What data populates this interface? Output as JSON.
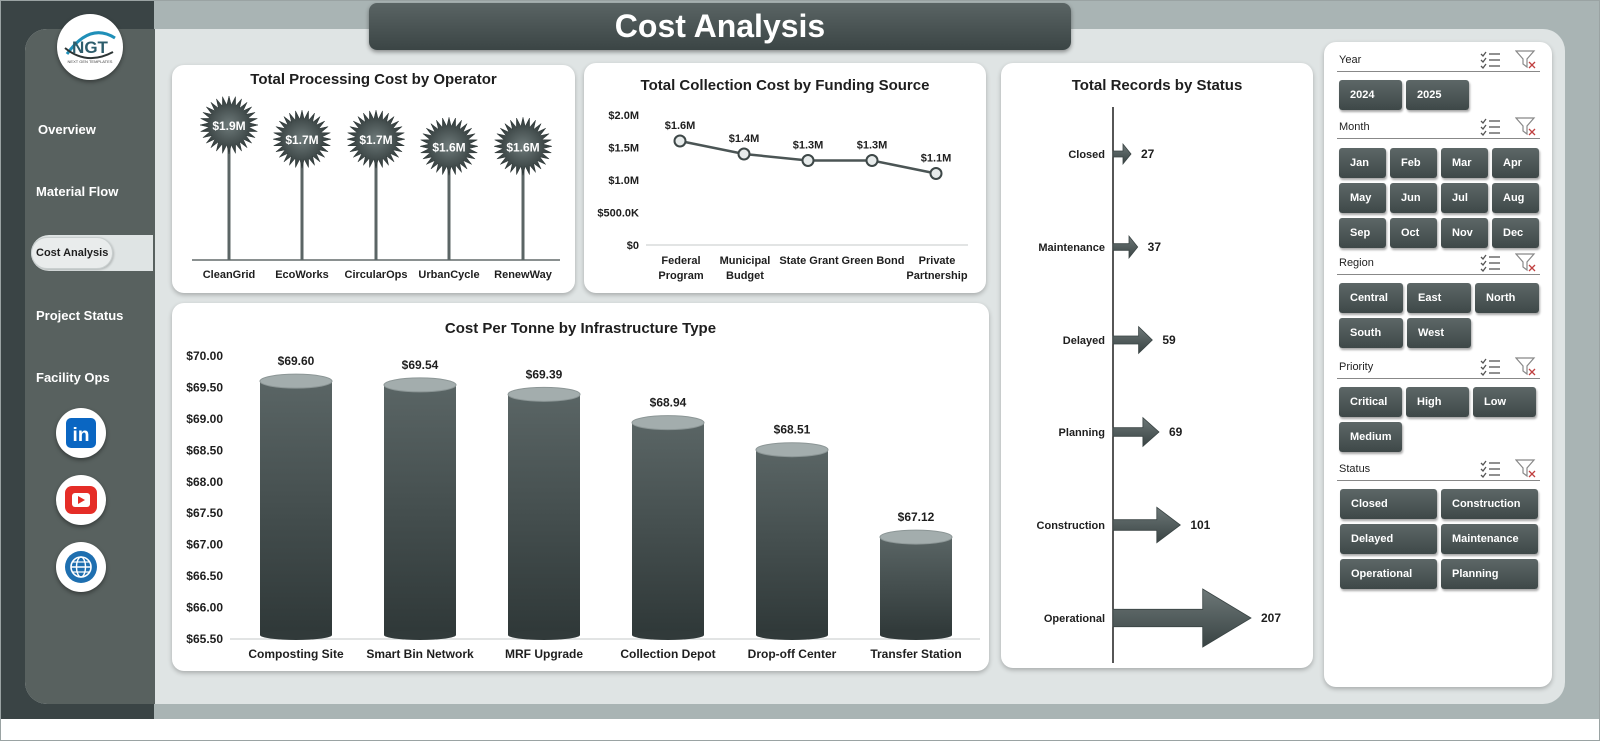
{
  "title": "Cost Analysis",
  "logo": {
    "text": "NGT",
    "subtext": "NEXT GEN TEMPLATES"
  },
  "nav": {
    "items": [
      {
        "label": "Overview"
      },
      {
        "label": "Material Flow"
      },
      {
        "label": "Cost Analysis"
      },
      {
        "label": "Project Status"
      },
      {
        "label": "Facility Ops"
      }
    ],
    "active": "Cost Analysis"
  },
  "social": {
    "linkedin": "in"
  },
  "colors": {
    "accent": "#4b5555",
    "dark": "#3a4445",
    "canvas": "#dfe4e4",
    "sidebar": "#58615f"
  },
  "slicers": {
    "year": {
      "label": "Year",
      "options": [
        "2024",
        "2025"
      ]
    },
    "month": {
      "label": "Month",
      "options": [
        "Jan",
        "Feb",
        "Mar",
        "Apr",
        "May",
        "Jun",
        "Jul",
        "Aug",
        "Sep",
        "Oct",
        "Nov",
        "Dec"
      ]
    },
    "region": {
      "label": "Region",
      "options": [
        "Central",
        "East",
        "North",
        "South",
        "West"
      ]
    },
    "priority": {
      "label": "Priority",
      "options": [
        "Critical",
        "High",
        "Low",
        "Medium"
      ]
    },
    "status": {
      "label": "Status",
      "options": [
        "Closed",
        "Construction",
        "Delayed",
        "Maintenance",
        "Operational",
        "Planning"
      ]
    }
  },
  "chart_data": [
    {
      "id": "processing",
      "type": "bar",
      "title": "Total Processing Cost by Operator",
      "categories": [
        "CleanGrid",
        "EcoWorks",
        "CircularOps",
        "UrbanCycle",
        "RenewWay"
      ],
      "values": [
        1.9,
        1.7,
        1.7,
        1.6,
        1.6
      ],
      "data_labels": [
        "$1.9M",
        "$1.7M",
        "$1.7M",
        "$1.6M",
        "$1.6M"
      ],
      "unit": "$M"
    },
    {
      "id": "collection",
      "type": "line",
      "title": "Total Collection Cost by Funding Source",
      "categories": [
        [
          "Federal",
          "Program"
        ],
        [
          "Municipal",
          "Budget"
        ],
        [
          "State Grant"
        ],
        [
          "Green Bond"
        ],
        [
          "Private",
          "Partnership"
        ]
      ],
      "values": [
        1.6,
        1.4,
        1.3,
        1.3,
        1.1
      ],
      "data_labels": [
        "$1.6M",
        "$1.4M",
        "$1.3M",
        "$1.3M",
        "$1.1M"
      ],
      "ylim": [
        0,
        2.0
      ],
      "yticks": [
        "$0",
        "$500.0K",
        "$1.0M",
        "$1.5M",
        "$2.0M"
      ],
      "grid": false
    },
    {
      "id": "tonne",
      "type": "bar",
      "title": "Cost Per Tonne by Infrastructure Type",
      "categories": [
        "Composting Site",
        "Smart Bin Network",
        "MRF Upgrade",
        "Collection Depot",
        "Drop-off Center",
        "Transfer Station"
      ],
      "values": [
        69.6,
        69.54,
        69.39,
        68.94,
        68.51,
        67.12
      ],
      "data_labels": [
        "$69.60",
        "$69.54",
        "$69.39",
        "$68.94",
        "$68.51",
        "$67.12"
      ],
      "ylim": [
        65.5,
        70.0
      ],
      "yticks": [
        "$65.50",
        "$66.00",
        "$66.50",
        "$67.00",
        "$67.50",
        "$68.00",
        "$68.50",
        "$69.00",
        "$69.50",
        "$70.00"
      ]
    },
    {
      "id": "status",
      "type": "bar",
      "title": "Total Records by Status",
      "categories": [
        "Closed",
        "Maintenance",
        "Delayed",
        "Planning",
        "Construction",
        "Operational"
      ],
      "values": [
        27,
        37,
        59,
        69,
        101,
        207
      ]
    }
  ]
}
